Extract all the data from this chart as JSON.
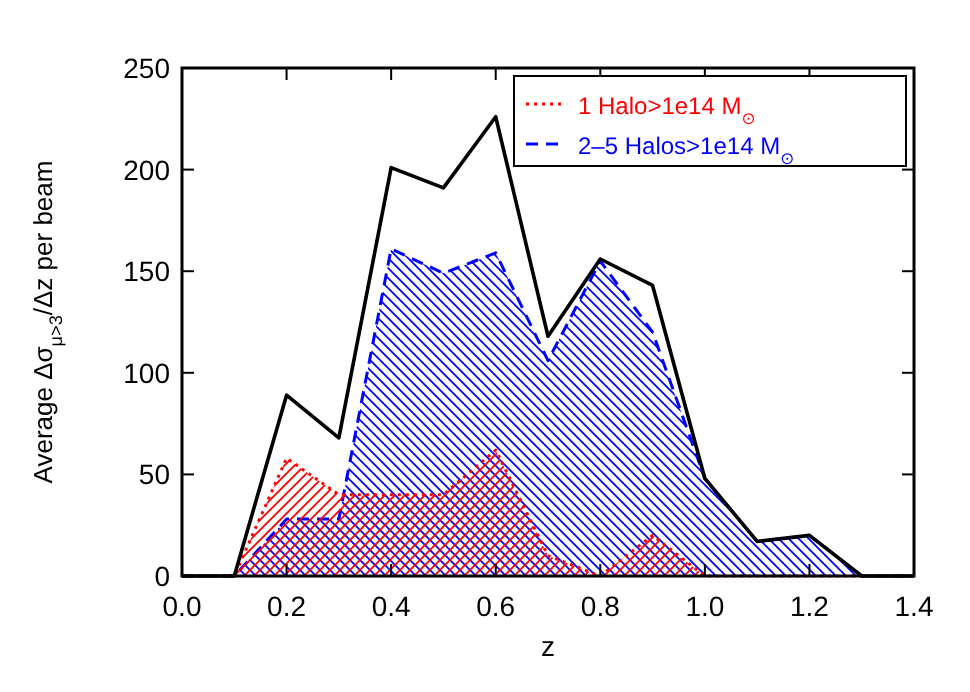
{
  "chart_data": {
    "type": "area",
    "xlabel": "z",
    "ylabel": "Average Δσ$_{μ>3}$/Δz per beam",
    "x": [
      0,
      0.1,
      0.2,
      0.3,
      0.4,
      0.5,
      0.6,
      0.7,
      0.8,
      0.9,
      1.0,
      1.1,
      1.2,
      1.3,
      1.4
    ],
    "series": [
      {
        "name": "2–5 Halos>1e14 M$_{⊙}$",
        "color": "#0000ff",
        "line_style": "dashed",
        "values": [
          0,
          0,
          28,
          28,
          161,
          149,
          159,
          106,
          155,
          120,
          48,
          17,
          20,
          0,
          0
        ]
      },
      {
        "name": "1 Halo>1e14 M$_{⊙}$",
        "color": "#ff0000",
        "line_style": "dotted",
        "values": [
          0,
          0,
          58,
          40,
          40,
          40,
          62,
          10,
          0,
          20,
          0,
          0,
          0,
          0,
          0
        ]
      },
      {
        "type": "line",
        "color": "#000000",
        "line_style": "solid",
        "values": [
          0,
          0,
          89,
          68,
          201,
          191,
          226,
          118,
          156,
          143,
          48,
          17,
          20,
          0,
          0
        ]
      }
    ],
    "xlim": [
      0,
      1.4
    ],
    "xticks": [
      {
        "value": 0,
        "label": "0.0"
      },
      0.2,
      0.4,
      0.6,
      0.8,
      {
        "value": 1,
        "label": "1.0"
      },
      1.2,
      1.4
    ],
    "ylim": [
      0,
      250
    ],
    "yticks": [
      0,
      50,
      100,
      150,
      200,
      250
    ],
    "grid": false,
    "legend": "top right"
  }
}
